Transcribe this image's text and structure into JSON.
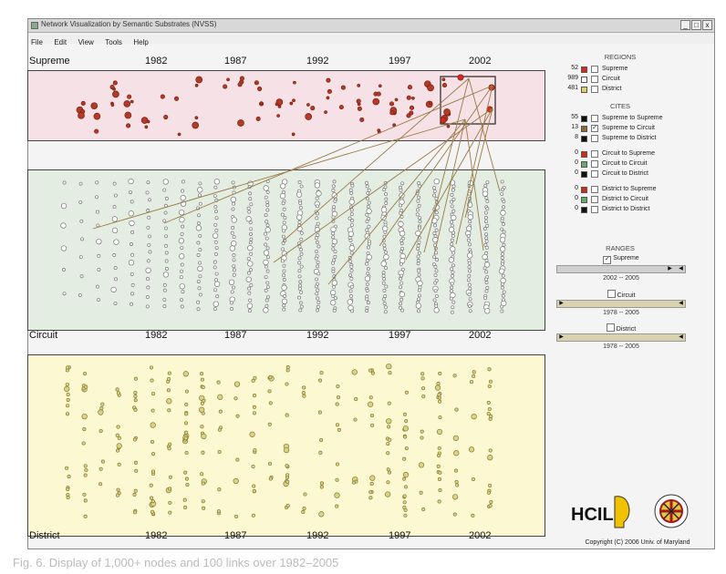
{
  "window": {
    "title": "Network Visualization by Semantic Substrates (NVSS)",
    "controls": [
      "_",
      "□",
      "x"
    ]
  },
  "menu": [
    "File",
    "Edit",
    "View",
    "Tools",
    "Help"
  ],
  "years": [
    "1982",
    "1987",
    "1992",
    "1997",
    "2002"
  ],
  "regions": {
    "supreme": {
      "label": "Supreme",
      "color": "#b23a28",
      "bg": "#f6e1e6"
    },
    "circuit": {
      "label": "Circuit",
      "color": "#ffffff",
      "bg": "#e4ede2"
    },
    "district": {
      "label": "District",
      "color": "#d9d38a",
      "bg": "#fbf8d2"
    }
  },
  "side": {
    "regions_title": "REGIONS",
    "regions": [
      {
        "count": "52",
        "label": "Supreme",
        "color": "#d42a1a"
      },
      {
        "count": "989",
        "label": "Circuit",
        "color": "#ffffff"
      },
      {
        "count": "481",
        "label": "District",
        "color": "#d9d36a"
      }
    ],
    "cites_title": "CITES",
    "cites": [
      {
        "count": "55",
        "label": "Supreme to Supreme",
        "color": "#111111",
        "checked": false
      },
      {
        "count": "13",
        "label": "Supreme to Circuit",
        "color": "#8a6a3a",
        "checked": true
      },
      {
        "count": "8",
        "label": "Supreme to District",
        "color": "#111111",
        "checked": false
      },
      {
        "count": "0",
        "label": "Circuit to Supreme",
        "color": "#d42a1a",
        "checked": false
      },
      {
        "count": "0",
        "label": "Circuit to Circuit",
        "color": "#6aa86a",
        "checked": false
      },
      {
        "count": "0",
        "label": "Circuit to District",
        "color": "#111111",
        "checked": false
      },
      {
        "count": "0",
        "label": "District to Supreme",
        "color": "#d42a1a",
        "checked": false
      },
      {
        "count": "0",
        "label": "District to Circuit",
        "color": "#6aa86a",
        "checked": false
      },
      {
        "count": "0",
        "label": "District to District",
        "color": "#111111",
        "checked": false
      }
    ],
    "ranges_title": "RANGES",
    "ranges": [
      {
        "label": "Supreme",
        "checked": true,
        "range": "2002 -- 2005"
      },
      {
        "label": "Circuit",
        "checked": false,
        "range": "1978 -- 2005"
      },
      {
        "label": "District",
        "checked": false,
        "range": "1978 -- 2005"
      }
    ]
  },
  "logos": {
    "hcil": "HCIL",
    "seal": "UNIVERSITY OF MARYLAND"
  },
  "copyright": "Copyright (C) 2006   Univ. of Maryland",
  "caption": "Fig. 6.  Display of 1,000+ nodes and 100 links over 1982–2005",
  "link_color": "#9a7a44"
}
